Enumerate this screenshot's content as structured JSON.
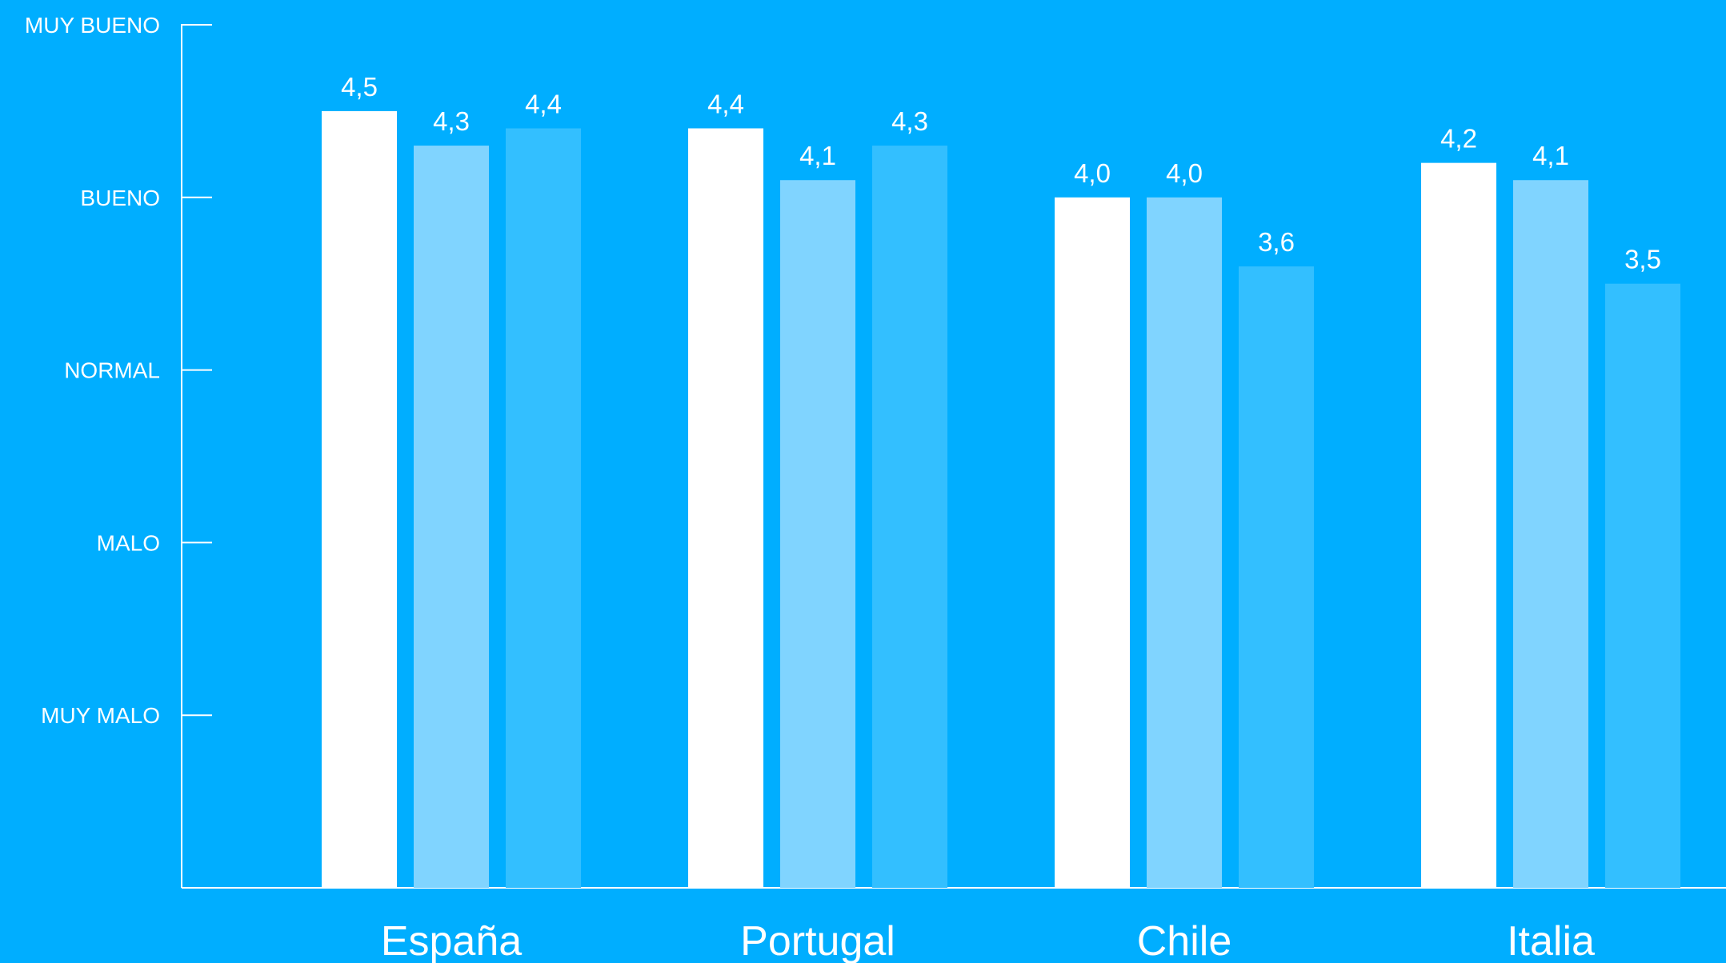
{
  "colors": {
    "background": "#00AEFF",
    "axis": "#FFFFFF",
    "text": "#FFFFFF"
  },
  "chart_data": {
    "type": "bar",
    "title": "",
    "xlabel": "",
    "ylabel": "",
    "categories": [
      "España",
      "Portugal",
      "Chile",
      "Italia"
    ],
    "series": [
      {
        "color": "#FFFFFF",
        "values": [
          4.5,
          4.4,
          4.0,
          4.2
        ],
        "value_labels": [
          "4,5",
          "4,4",
          "4,0",
          "4,2"
        ]
      },
      {
        "color": "#80D4FF",
        "values": [
          4.3,
          4.1,
          4.0,
          4.1
        ],
        "value_labels": [
          "4,3",
          "4,1",
          "4,0",
          "4,1"
        ]
      },
      {
        "color": "#33BFFF",
        "values": [
          4.4,
          4.3,
          3.6,
          3.5
        ],
        "value_labels": [
          "4,4",
          "4,3",
          "3,6",
          "3,5"
        ]
      }
    ],
    "ylim": [
      0,
      5
    ],
    "yticks": [
      {
        "value": 1,
        "label": "MUY MALO"
      },
      {
        "value": 2,
        "label": "MALO"
      },
      {
        "value": 3,
        "label": "NORMAL"
      },
      {
        "value": 4,
        "label": "BUENO"
      },
      {
        "value": 5,
        "label": "MUY BUENO"
      }
    ],
    "grid": false,
    "legend": "none"
  }
}
